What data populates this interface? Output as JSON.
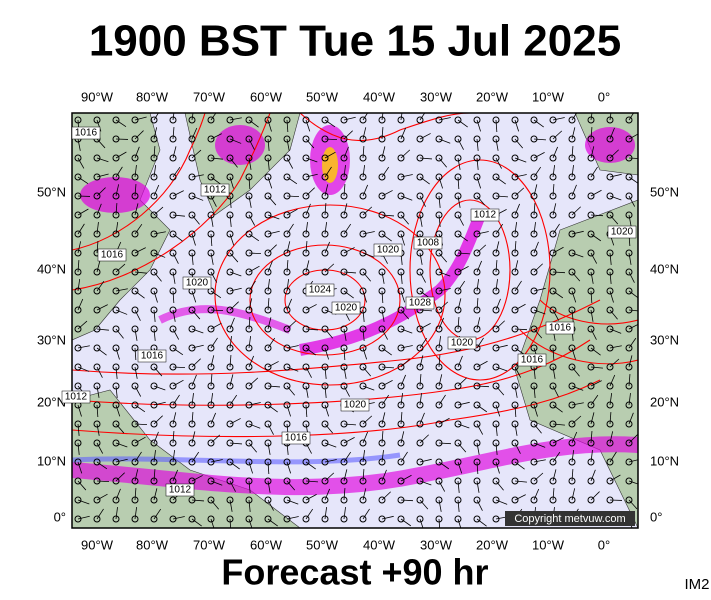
{
  "header": {
    "title": "1900 BST Tue 15 Jul 2025"
  },
  "map": {
    "lon_labels": [
      "90°W",
      "80°W",
      "70°W",
      "60°W",
      "50°W",
      "40°W",
      "30°W",
      "20°W",
      "10°W",
      "0°"
    ],
    "lat_labels": [
      "50°N",
      "40°N",
      "30°N",
      "20°N",
      "10°N",
      "0°"
    ],
    "isobar_labels": [
      "1016",
      "1012",
      "1016",
      "1020",
      "1024",
      "1020",
      "1020",
      "1028",
      "1008",
      "1012",
      "1020",
      "1016",
      "1020",
      "1016",
      "1012",
      "1016",
      "1016",
      "1020",
      "1012"
    ],
    "copyright": "Copyright metvuw.com"
  },
  "footer": {
    "forecast": "Forecast +90 hr",
    "tag": "IM2"
  }
}
